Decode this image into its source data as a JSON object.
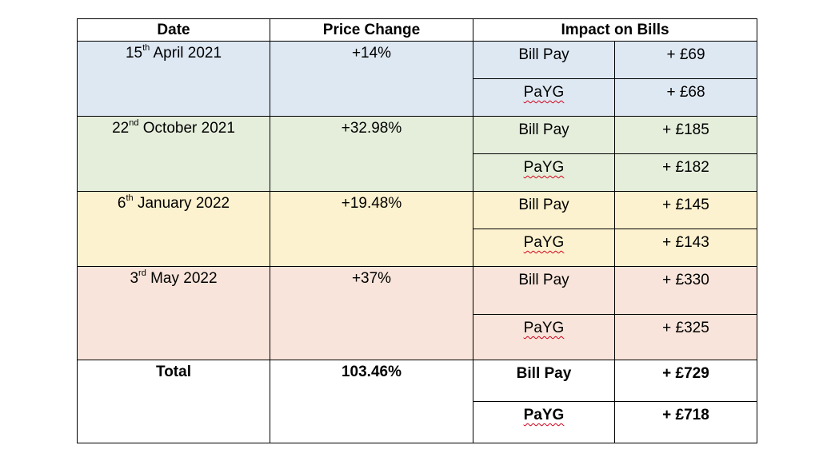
{
  "headers": {
    "date": "Date",
    "price_change": "Price Change",
    "impact": "Impact on Bills"
  },
  "rows": [
    {
      "day": "15",
      "suffix": "th",
      "rest": " April 2021",
      "change": "+14%",
      "color": "#dee8f3",
      "bill_label": "Bill Pay",
      "bill_value": "+ £69",
      "payg_label": "PaYG",
      "payg_value": "+ £68"
    },
    {
      "day": "22",
      "suffix": "nd",
      "rest": " October 2021",
      "change": "+32.98%",
      "color": "#e5eedb",
      "bill_label": "Bill Pay",
      "bill_value": "+ £185",
      "payg_label": "PaYG",
      "payg_value": "+ £182"
    },
    {
      "day": "6",
      "suffix": "th",
      "rest": " January 2022",
      "change": "+19.48%",
      "color": "#fdf2cf",
      "bill_label": "Bill Pay",
      "bill_value": "+ £145",
      "payg_label": "PaYG",
      "payg_value": "+ £143"
    },
    {
      "day": "3",
      "suffix": "rd",
      "rest": " May 2022",
      "change": "+37%",
      "color": "#f8e4da",
      "bill_label": "Bill Pay",
      "bill_value": "+ £330",
      "payg_label": "PaYG",
      "payg_value": "+ £325"
    }
  ],
  "total": {
    "label": "Total",
    "change": "103.46%",
    "bill_label": "Bill Pay",
    "bill_value": "+ £729",
    "payg_label": "PaYG",
    "payg_value": "+ £718"
  }
}
